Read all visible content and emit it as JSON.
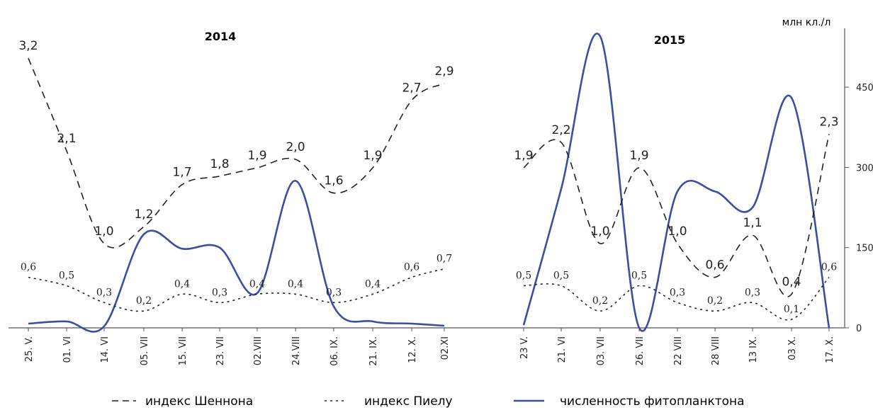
{
  "chart_data": {
    "type": "line",
    "unit_label": "млн кл./л",
    "right_axis_ticks": [
      0,
      150,
      300,
      450
    ],
    "right_axis_range": [
      0,
      560
    ],
    "left_axis_range": [
      0,
      3.6
    ],
    "grid": false,
    "legend_position": "bottom",
    "legend": [
      {
        "key": "shannon",
        "label": "индекс Шеннона",
        "style": "dashed",
        "color": "#222222"
      },
      {
        "key": "pielou",
        "label": "индекс Пиелу",
        "style": "dotted",
        "color": "#222222"
      },
      {
        "key": "phyto",
        "label": "численность фитопланктона",
        "style": "solid",
        "color": "#3a4fa0"
      }
    ],
    "panels": [
      {
        "title": "2014",
        "categories": [
          "25. V.",
          "01. VI",
          "14. VI",
          "05. VII",
          "15. VII",
          "23. VII",
          "02.VIII",
          "24.VIII",
          "06. IX.",
          "21. IX.",
          "12. X.",
          "02.XI"
        ],
        "shannon_labels": [
          "3,2",
          "2,1",
          "1,0",
          "1,2",
          "1,7",
          "1,8",
          "1,9",
          "2,0",
          "1,6",
          "1,9",
          "2,7",
          "2,9"
        ],
        "shannon": [
          3.2,
          2.1,
          1.0,
          1.2,
          1.7,
          1.8,
          1.9,
          2.0,
          1.6,
          1.9,
          2.7,
          2.9
        ],
        "pielou_labels": [
          "0,6",
          "0,5",
          "0,3",
          "0,2",
          "0,4",
          "0,3",
          "0,4",
          "0,4",
          "0,3",
          "0,4",
          "0,6",
          "0,7"
        ],
        "pielou": [
          0.6,
          0.5,
          0.3,
          0.2,
          0.4,
          0.3,
          0.4,
          0.4,
          0.3,
          0.4,
          0.6,
          0.7
        ],
        "phytoplankton": [
          8,
          12,
          3,
          175,
          148,
          150,
          65,
          275,
          40,
          12,
          8,
          4
        ]
      },
      {
        "title": "2015",
        "categories": [
          "23 V.",
          "21. VI",
          "03. VII",
          "26. VII",
          "22 VIII",
          "28 VIII",
          "13 IX.",
          "03 X.",
          "17. X."
        ],
        "shannon_labels": [
          "1,9",
          "2,2",
          "1,0",
          "1,9",
          "1,0",
          "0,6",
          "1,1",
          "0,4",
          "2,3"
        ],
        "shannon": [
          1.9,
          2.2,
          1.0,
          1.9,
          1.0,
          0.6,
          1.1,
          0.4,
          2.3
        ],
        "pielou_labels": [
          "0,5",
          "0,5",
          "0,2",
          "0,5",
          "0,3",
          "0,2",
          "0,3",
          "0,1",
          "0,6"
        ],
        "pielou": [
          0.5,
          0.5,
          0.2,
          0.5,
          0.3,
          0.2,
          0.3,
          0.1,
          0.6
        ],
        "phytoplankton": [
          5,
          260,
          545,
          0,
          255,
          255,
          225,
          430,
          0
        ]
      }
    ]
  }
}
